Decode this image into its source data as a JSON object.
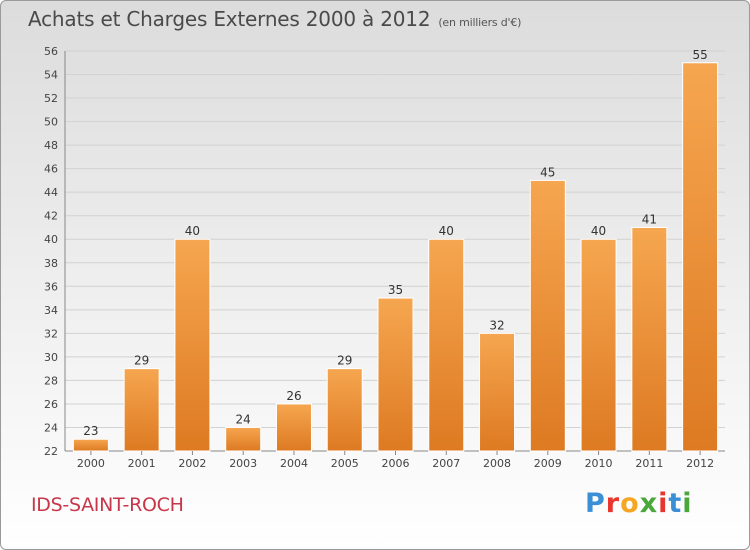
{
  "title": "Achats et Charges Externes 2000 à 2012",
  "unit_label": "(en milliers d'€)",
  "city": "IDS-SAINT-ROCH",
  "logo": {
    "text": "Proxiti",
    "letter_colors": [
      "#3a8fd6",
      "#e8352e",
      "#f5a623",
      "#4aa83a",
      "#e8352e",
      "#3a8fd6",
      "#4aa83a"
    ]
  },
  "colors": {
    "bar_light": "#f6a650",
    "bar_dark": "#dd7a22",
    "city": "#c8364a"
  },
  "chart_data": {
    "type": "bar",
    "categories": [
      "2000",
      "2001",
      "2002",
      "2003",
      "2004",
      "2005",
      "2006",
      "2007",
      "2008",
      "2009",
      "2010",
      "2011",
      "2012"
    ],
    "values": [
      23,
      29,
      40,
      24,
      26,
      29,
      35,
      40,
      32,
      45,
      40,
      41,
      55
    ],
    "ylim": [
      22,
      56
    ],
    "yticks": [
      22,
      24,
      26,
      28,
      30,
      32,
      34,
      36,
      38,
      40,
      42,
      44,
      46,
      48,
      50,
      52,
      54,
      56
    ],
    "grid": true
  }
}
